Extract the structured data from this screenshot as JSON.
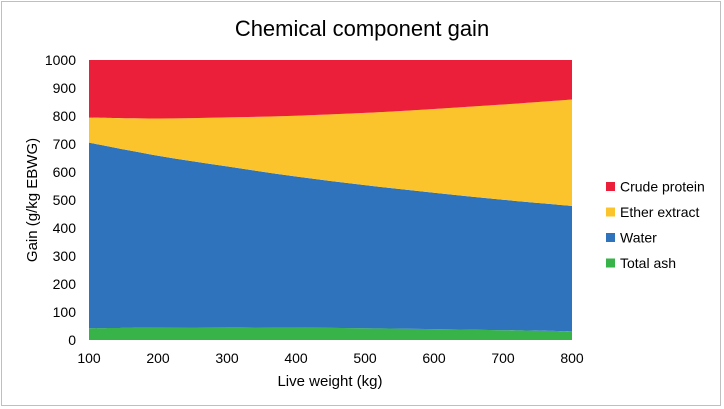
{
  "chart_data": {
    "type": "area",
    "title": "Chemical component gain",
    "xlabel": "Live weight (kg)",
    "ylabel": "Gain (g/kg EBWG)",
    "x": [
      100,
      200,
      300,
      400,
      500,
      600,
      700,
      800
    ],
    "xlim": [
      100,
      800
    ],
    "ylim": [
      0,
      1000
    ],
    "x_ticks": [
      "100",
      "200",
      "300",
      "400",
      "500",
      "600",
      "700",
      "800"
    ],
    "y_ticks": [
      "0",
      "100",
      "200",
      "300",
      "400",
      "500",
      "600",
      "700",
      "800",
      "900",
      "1000"
    ],
    "grid": false,
    "legend_position": "right",
    "stacked": true,
    "series": [
      {
        "name": "Total ash",
        "color": "#37b34a",
        "values": [
          42,
          44,
          45,
          44,
          42,
          39,
          35,
          31
        ]
      },
      {
        "name": "Water",
        "color": "#2e73bb",
        "values": [
          663,
          614,
          575,
          540,
          511,
          487,
          466,
          448
        ]
      },
      {
        "name": "Ether extract",
        "color": "#fcc42c",
        "values": [
          89,
          133,
          175,
          217,
          258,
          299,
          340,
          380
        ]
      },
      {
        "name": "Crude protein",
        "color": "#ec1f3b",
        "values": [
          206,
          209,
          205,
          199,
          189,
          175,
          159,
          141
        ]
      }
    ]
  }
}
